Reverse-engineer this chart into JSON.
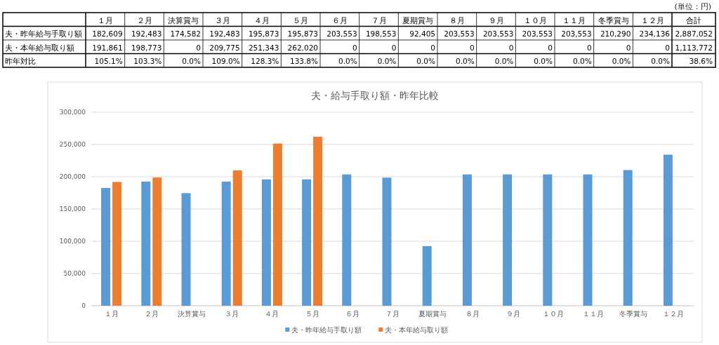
{
  "chart_data": {
    "type": "bar",
    "title": "夫・給与手取り額・昨年比較",
    "categories": [
      "１月",
      "２月",
      "決算賞与",
      "３月",
      "４月",
      "５月",
      "６月",
      "７月",
      "夏期賞与",
      "８月",
      "９月",
      "１０月",
      "１１月",
      "冬季賞与",
      "１２月"
    ],
    "series": [
      {
        "name": "夫・昨年給与手取り額",
        "color": "#5b9bd5",
        "values": [
          182609,
          192483,
          174582,
          192483,
          195873,
          195873,
          203553,
          198553,
          92405,
          203553,
          203553,
          203553,
          203553,
          210290,
          234136
        ],
        "value_labels": [
          "182,609",
          "192,483",
          "174,582",
          "192,483",
          "195,873",
          "195,873",
          "203,553",
          "198,553",
          "92,405",
          "203,553",
          "203,553",
          "203,553",
          "203,553",
          "210,290",
          "234,136"
        ]
      },
      {
        "name": "夫・本年給与取り額",
        "color": "#ed7d31",
        "values": [
          191861,
          198773,
          0,
          209775,
          251343,
          262020,
          0,
          0,
          0,
          0,
          0,
          0,
          0,
          0,
          0
        ],
        "value_labels": [
          "191,861",
          "198,773",
          "0",
          "209,775",
          "251,343",
          "262,020",
          "0",
          "0",
          "0",
          "0",
          "0",
          "0",
          "0",
          "0",
          "0"
        ]
      }
    ],
    "annotations": [
      "(単位：円)",
      "合計",
      "2,887,052",
      "1,113,772",
      "昨年対比",
      "105.1%",
      "103.3%",
      "0.0%",
      "109.0%",
      "128.3%",
      "133.8%",
      "0.0%",
      "0.0%",
      "0.0%",
      "0.0%",
      "0.0%",
      "0.0%",
      "0.0%",
      "0.0%",
      "0.0%",
      "38.6%"
    ],
    "ylim": [
      0,
      300000
    ],
    "yticks": [
      {
        "value": 0,
        "label": "0"
      },
      {
        "value": 50000,
        "label": "50,000"
      },
      {
        "value": 100000,
        "label": "100,000"
      },
      {
        "value": 150000,
        "label": "150,000"
      },
      {
        "value": 200000,
        "label": "200,000"
      },
      {
        "value": 250000,
        "label": "250,000"
      },
      {
        "value": 300000,
        "label": "300,000"
      }
    ],
    "grid": "y",
    "legend": "bottom"
  }
}
